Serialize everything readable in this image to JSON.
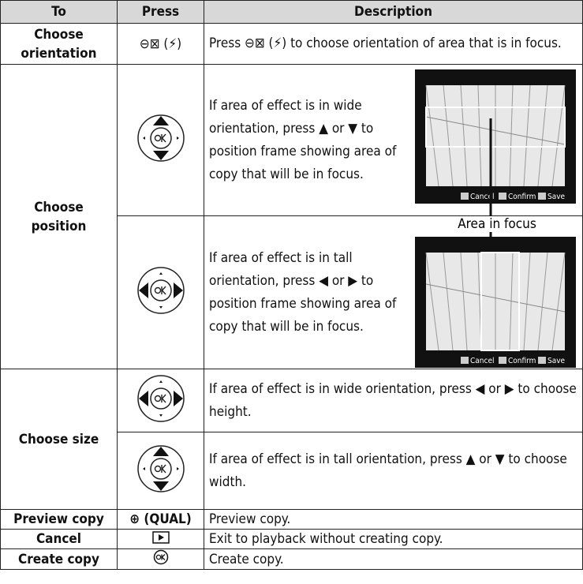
{
  "table": {
    "header": [
      "To",
      "Press",
      "Description"
    ],
    "rows": [
      {
        "to": "Choose orientation",
        "press": "⊖⊠ (⚡)",
        "description": "Press ⊖⊠ (⚡) to choose orientation of area that is in focus."
      },
      {
        "to": "Choose position",
        "steps": [
          {
            "description": "If area of effect is in wide orientation, press ▲ or ▼ to position frame showing area of copy that will be in focus."
          },
          {
            "description": "If area of effect is in tall orientation, press ◀ or ▶ to position frame showing area of copy that will be in focus."
          }
        ]
      },
      {
        "to": "Choose size",
        "steps": [
          {
            "description": "If area of effect is in wide orientation, press ◀ or ▶ to choose height."
          },
          {
            "description": "If area of effect is in tall orientation, press ▲ or ▼ to choose width."
          }
        ]
      },
      {
        "to": "Preview copy",
        "press": "⊕ (QUAL)",
        "description": "Preview copy."
      },
      {
        "to": "Cancel",
        "description": "Exit to playback without creating copy."
      },
      {
        "to": "Create copy",
        "description": "Create copy."
      }
    ]
  },
  "figure": {
    "caption": "Area in focus",
    "screens": [
      {
        "buttons": [
          "Cancel",
          "Confirm",
          "Save"
        ]
      },
      {
        "buttons": [
          "Cancel",
          "Confirm",
          "Save"
        ]
      }
    ]
  }
}
